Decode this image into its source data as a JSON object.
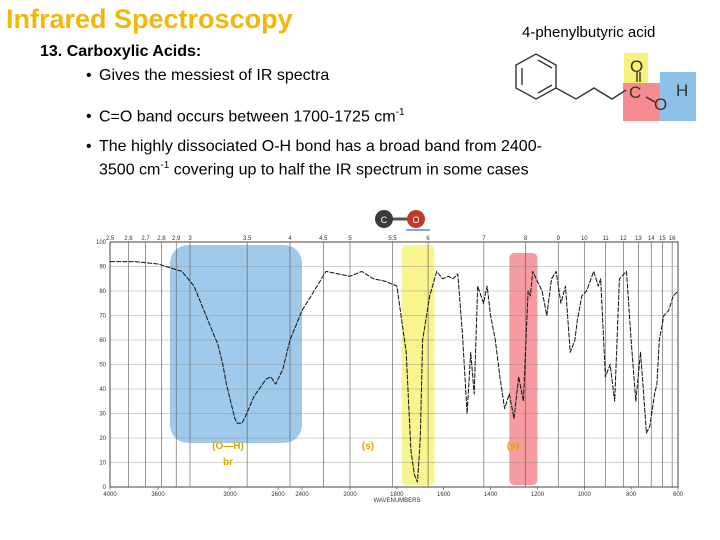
{
  "slide": {
    "title": "Infrared Spectroscopy",
    "compound_name": "4-phenylbutyric acid",
    "section_heading": "13.  Carboxylic Acids:",
    "bullets": [
      "Gives the messiest of IR spectra",
      "C=O band occurs between 1700-1725 cm",
      "The highly dissociated O-H bond has a broad band from 2400-",
      "3500 cm",
      " covering up to half the IR spectrum in some cases"
    ],
    "superscript": "-1"
  },
  "molecule": {
    "atoms": [
      "O",
      "C",
      "O",
      "H"
    ],
    "highlight_colors": {
      "carbonyl_o": "#f7f27a",
      "carbonyl_c": "#f58a8f",
      "hydroxyl_oh": "#8ec1e7"
    }
  },
  "bond_icon": {
    "atom1": "C",
    "atom2": "O"
  },
  "chart_data": {
    "type": "line",
    "series": [
      {
        "name": "",
        "x": [
          4000,
          3800,
          3600,
          3400,
          3300,
          3200,
          3100,
          3060,
          3030,
          3000,
          2960,
          2940,
          2900,
          2860,
          2800,
          2700,
          2660,
          2620,
          2560,
          2500,
          2400,
          2300,
          2200,
          2000,
          1950,
          1900,
          1850,
          1800,
          1760,
          1740,
          1725,
          1712,
          1700,
          1690,
          1660,
          1630,
          1605,
          1580,
          1560,
          1540,
          1520,
          1500,
          1485,
          1470,
          1455,
          1430,
          1415,
          1400,
          1380,
          1360,
          1340,
          1320,
          1300,
          1280,
          1260,
          1240,
          1230,
          1220,
          1200,
          1180,
          1160,
          1140,
          1120,
          1100,
          1080,
          1060,
          1040,
          1030,
          1010,
          990,
          960,
          940,
          930,
          910,
          890,
          870,
          850,
          820,
          800,
          780,
          760,
          748,
          735,
          720,
          700,
          690,
          680,
          660,
          640,
          620,
          600
        ],
        "y": [
          92,
          92,
          91,
          88,
          82,
          70,
          58,
          50,
          42,
          36,
          28,
          26,
          26,
          30,
          37,
          44,
          45,
          42,
          48,
          60,
          72,
          80,
          88,
          86,
          88,
          85,
          84,
          82,
          55,
          15,
          5,
          2,
          20,
          60,
          78,
          88,
          85,
          86,
          85,
          87,
          62,
          30,
          55,
          38,
          82,
          75,
          82,
          70,
          60,
          45,
          32,
          38,
          28,
          45,
          35,
          80,
          78,
          88,
          84,
          80,
          70,
          85,
          88,
          75,
          82,
          55,
          60,
          68,
          78,
          80,
          88,
          82,
          85,
          45,
          50,
          35,
          85,
          88,
          60,
          35,
          55,
          40,
          22,
          25,
          38,
          42,
          60,
          70,
          72,
          78,
          80
        ]
      }
    ],
    "x_axis": {
      "label": "WAVENUMBERS",
      "range": [
        4000,
        600
      ],
      "ticks": [
        4000,
        3600,
        3000,
        2600,
        2400,
        2000,
        1800,
        1600,
        1400,
        1200,
        1000,
        800,
        600
      ],
      "tick_labels": [
        "4000",
        "3600",
        "3000",
        "2600",
        "2400",
        "2000",
        "1800",
        "1600",
        "1400",
        "1200",
        "1000",
        "800",
        "600"
      ]
    },
    "y_axis": {
      "range": [
        0,
        100
      ],
      "ticks": [
        0,
        10,
        20,
        30,
        40,
        50,
        60,
        70,
        80,
        90,
        100
      ],
      "tick_labels": [
        "0",
        "10",
        "20",
        "30",
        "40",
        "50",
        "60",
        "70",
        "80",
        "90",
        "100"
      ]
    },
    "top_axis": {
      "values": [
        2.5,
        2.6,
        2.7,
        2.8,
        2.9,
        3,
        3.5,
        4,
        4.5,
        5,
        5.5,
        6,
        7,
        8,
        9,
        10,
        11,
        12,
        13,
        14,
        15,
        16
      ],
      "labels": [
        "2.5",
        "2.6",
        "2.7",
        "2.8",
        "2.9",
        "3",
        "3.5",
        "4",
        "4.5",
        "5",
        "5.5",
        "6",
        "7",
        "8",
        "9",
        "10",
        "11",
        "12",
        "13",
        "14",
        "15",
        "16"
      ]
    },
    "highlights": [
      {
        "name": "O-H stretch",
        "x_range": [
          3500,
          2400
        ],
        "color": "#8ec1e7",
        "label": "(O—H)",
        "sublabel": "br"
      },
      {
        "name": "C=O stretch",
        "x_range": [
          1780,
          1640
        ],
        "color": "#f7f27a",
        "label": "(s)"
      },
      {
        "name": "C-O stretch",
        "x_range": [
          1320,
          1200
        ],
        "color": "#f58a8f",
        "label": "(s)"
      }
    ],
    "grid": true
  }
}
